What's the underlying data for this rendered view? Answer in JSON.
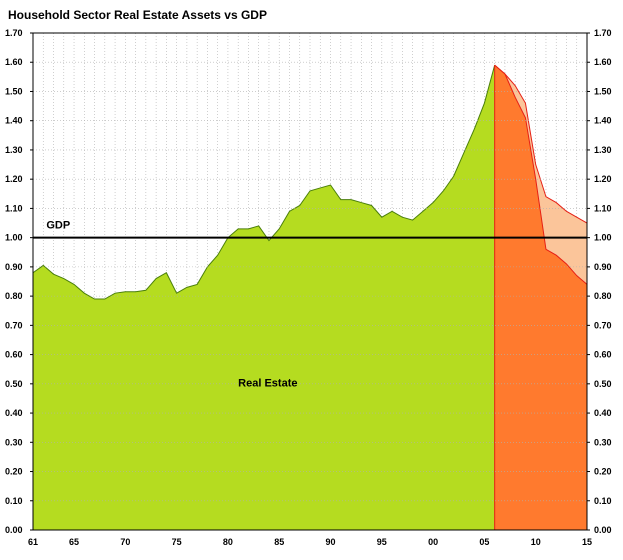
{
  "chart_data": {
    "type": "area",
    "title": "Household Sector Real Estate Assets vs GDP",
    "xlabel": "",
    "ylabel": "",
    "xlim": [
      1961,
      2015
    ],
    "ylim": [
      0,
      1.7
    ],
    "y_ticks": [
      "0.00",
      "0.10",
      "0.20",
      "0.30",
      "0.40",
      "0.50",
      "0.60",
      "0.70",
      "0.80",
      "0.90",
      "1.00",
      "1.10",
      "1.20",
      "1.30",
      "1.40",
      "1.50",
      "1.60",
      "1.70"
    ],
    "x_tick_labels": [
      {
        "x": 1961,
        "label": "61"
      },
      {
        "x": 1965,
        "label": "65"
      },
      {
        "x": 1970,
        "label": "70"
      },
      {
        "x": 1975,
        "label": "75"
      },
      {
        "x": 1980,
        "label": "80"
      },
      {
        "x": 1985,
        "label": "85"
      },
      {
        "x": 1990,
        "label": "90"
      },
      {
        "x": 1995,
        "label": "95"
      },
      {
        "x": 2000,
        "label": "00"
      },
      {
        "x": 2005,
        "label": "05"
      },
      {
        "x": 2010,
        "label": "10"
      },
      {
        "x": 2015,
        "label": "15"
      }
    ],
    "grid": true,
    "annotations": [
      {
        "text": "GDP",
        "x": 1962.3,
        "y": 1.025
      },
      {
        "text": "Real Estate",
        "x": 1981,
        "y": 0.49
      }
    ],
    "series": [
      {
        "x": [
          1961,
          1962,
          1963,
          1964,
          1965,
          1966,
          1967,
          1968,
          1969,
          1970,
          1971,
          1972,
          1973,
          1974,
          1975,
          1976,
          1977,
          1978,
          1979,
          1980,
          1981,
          1982,
          1983,
          1984,
          1985,
          1986,
          1987,
          1988,
          1989,
          1990,
          1991,
          1992,
          1993,
          1994,
          1995,
          1996,
          1997,
          1998,
          1999,
          2000,
          2001,
          2002,
          2003,
          2004,
          2005,
          2006
        ],
        "values": [
          0.88,
          0.905,
          0.875,
          0.86,
          0.84,
          0.81,
          0.79,
          0.79,
          0.81,
          0.815,
          0.815,
          0.82,
          0.86,
          0.88,
          0.81,
          0.83,
          0.84,
          0.9,
          0.94,
          1.0,
          1.03,
          1.03,
          1.04,
          0.99,
          1.03,
          1.09,
          1.11,
          1.16,
          1.17,
          1.18,
          1.13,
          1.13,
          1.12,
          1.11,
          1.07,
          1.09,
          1.07,
          1.06,
          1.09,
          1.12,
          1.16,
          1.21,
          1.29,
          1.37,
          1.46,
          1.59
        ]
      },
      {
        "x": [
          2006,
          2007,
          2008,
          2009,
          2010,
          2011,
          2012,
          2013,
          2014,
          2015
        ],
        "values": [
          1.59,
          1.56,
          1.48,
          1.41,
          1.2,
          0.96,
          0.94,
          0.91,
          0.87,
          0.84
        ]
      },
      {
        "x": [
          2006,
          2007,
          2008,
          2009,
          2010,
          2011,
          2012,
          2013,
          2014,
          2015
        ],
        "values": [
          1.59,
          1.56,
          1.52,
          1.46,
          1.25,
          1.14,
          1.12,
          1.09,
          1.07,
          1.05
        ]
      },
      {
        "x": [
          1961,
          2015
        ],
        "values": [
          1.0,
          1.0
        ]
      }
    ],
    "colors": {
      "background": "#ffffff",
      "grid": "#b0b0b0",
      "history_fill": "#b5dc20",
      "history_line": "#4a7f0a",
      "projection_fill": "#ff7a2e",
      "projection_band": "#fbc59a",
      "projection_line": "#e61f14",
      "gdp_line": "#000000",
      "axis": "#000000"
    }
  }
}
